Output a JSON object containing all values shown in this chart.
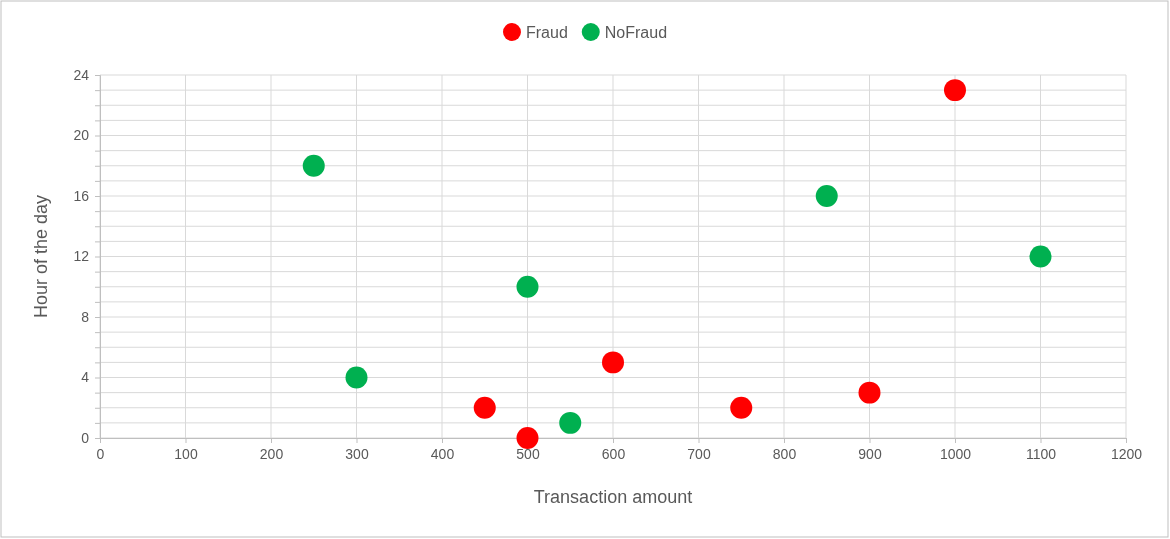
{
  "chart_data": {
    "type": "scatter",
    "xlabel": "Transaction amount",
    "ylabel": "Hour of the day",
    "xlim": [
      0,
      1200
    ],
    "xticks": [
      0,
      100,
      200,
      300,
      400,
      500,
      600,
      700,
      800,
      900,
      1000,
      1100,
      1200
    ],
    "ylim": [
      0,
      24
    ],
    "yticks": [
      0,
      {
        "value": 1,
        "label": null
      },
      {
        "value": 2,
        "label": null
      },
      {
        "value": 3,
        "label": null
      },
      4,
      {
        "value": 5,
        "label": null
      },
      {
        "value": 6,
        "label": null
      },
      {
        "value": 7,
        "label": null
      },
      8,
      {
        "value": 9,
        "label": null
      },
      {
        "value": 10,
        "label": null
      },
      {
        "value": 11,
        "label": null
      },
      12,
      {
        "value": 13,
        "label": null
      },
      {
        "value": 14,
        "label": null
      },
      {
        "value": 15,
        "label": null
      },
      16,
      {
        "value": 17,
        "label": null
      },
      {
        "value": 18,
        "label": null
      },
      {
        "value": 19,
        "label": null
      },
      20,
      {
        "value": 21,
        "label": null
      },
      {
        "value": 22,
        "label": null
      },
      {
        "value": 23,
        "label": null
      },
      24
    ],
    "grid": true,
    "legend": "top",
    "marker": "circle",
    "series": [
      {
        "name": "Fraud",
        "color": "#ff0000",
        "x": [
          450,
          500,
          600,
          750,
          900,
          1000
        ],
        "values": [
          2,
          0,
          5,
          2,
          3,
          23
        ]
      },
      {
        "name": "NoFraud",
        "color": "#00b050",
        "x": [
          250,
          300,
          500,
          550,
          850,
          1100
        ],
        "values": [
          18,
          4,
          10,
          1,
          16,
          12
        ]
      }
    ]
  }
}
